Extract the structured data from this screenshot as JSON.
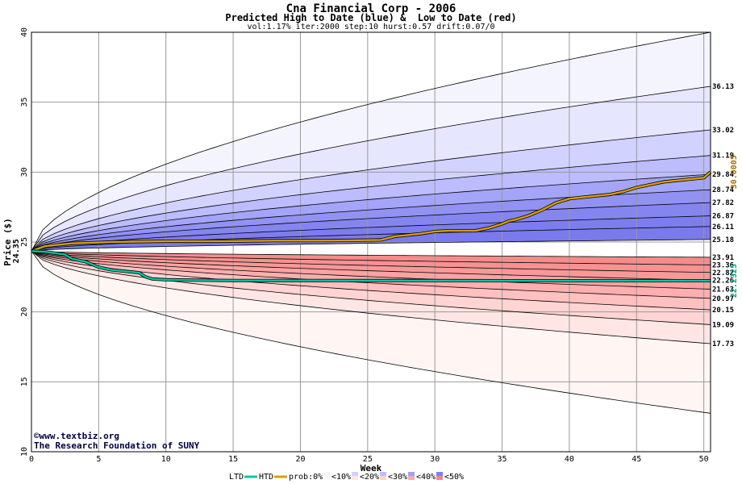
{
  "chart_data": {
    "type": "area",
    "title": "Cna Financial Corp - 2006",
    "subtitle": "Predicted High to Date (blue) &  Low to Date (red)",
    "params": "vol:1.17% iter:2000 step:10 hurst:0.57 drift:0.07/0",
    "xlabel": "Week",
    "ylabel": "Price ($)",
    "xlim": [
      0,
      50.5
    ],
    "ylim": [
      10,
      40
    ],
    "x_ticks": [
      0,
      5,
      10,
      15,
      20,
      25,
      30,
      35,
      40,
      45,
      50
    ],
    "y_ticks": [
      10,
      15,
      20,
      25,
      30,
      35,
      40
    ],
    "grid": true,
    "start_price": 24.35,
    "start_label": "24.35",
    "band_ends_high": [
      40.0,
      36.13,
      33.02,
      31.19,
      29.84,
      28.74,
      27.82,
      26.87,
      26.11,
      25.18
    ],
    "band_ends_low": [
      23.91,
      23.36,
      22.82,
      22.26,
      21.63,
      20.97,
      20.15,
      19.09,
      17.73,
      12.75
    ],
    "right_labels": [
      "36.13",
      "33.02",
      "31.19",
      "29.84",
      "28.74",
      "27.82",
      "26.87",
      "26.11",
      "25.18",
      "23.91",
      "23.36",
      "22.82",
      "22.26",
      "21.63",
      "20.97",
      "20.15",
      "19.09",
      "17.73"
    ],
    "series": [
      {
        "name": "HTD",
        "color": "#d8a000",
        "x": [
          0,
          1,
          3,
          6,
          10,
          14,
          18,
          22,
          26,
          27,
          28,
          29,
          30,
          31,
          32,
          33,
          34,
          35,
          35.5,
          36,
          37,
          38,
          39,
          40,
          41,
          42,
          43,
          44,
          45,
          46,
          47,
          48,
          49,
          50,
          50.5
        ],
        "values": [
          24.35,
          24.7,
          24.9,
          25.0,
          25.05,
          25.05,
          25.1,
          25.1,
          25.15,
          25.4,
          25.5,
          25.6,
          25.75,
          25.8,
          25.8,
          25.8,
          26.0,
          26.3,
          26.5,
          26.6,
          26.9,
          27.3,
          27.8,
          28.1,
          28.2,
          28.3,
          28.4,
          28.6,
          28.9,
          29.1,
          29.3,
          29.4,
          29.5,
          29.6,
          30.0
        ],
        "end_label": "30.0005"
      },
      {
        "name": "LTD",
        "color": "#00c8a0",
        "x": [
          0,
          1,
          2.5,
          3,
          4,
          4.5,
          5,
          6,
          7,
          8,
          8.5,
          9,
          10,
          12,
          15,
          20,
          25,
          30,
          35,
          40,
          45,
          50.5
        ],
        "values": [
          24.35,
          24.3,
          24.1,
          23.8,
          23.6,
          23.4,
          23.2,
          23.0,
          22.9,
          22.8,
          22.5,
          22.35,
          22.3,
          22.27,
          22.25,
          22.25,
          22.24,
          22.24,
          22.23,
          22.23,
          22.23,
          22.23
        ],
        "end_label": "22.2325"
      }
    ],
    "band_colors_high": [
      "#f4f4ff",
      "#e6e6ff",
      "#d2d2ff",
      "#bcbcff",
      "#a4a4f8",
      "#9292f2",
      "#8585f0",
      "#7d7dee",
      "#7a7aec"
    ],
    "band_colors_low": [
      "#fff6f4",
      "#ffe6e4",
      "#ffd4d2",
      "#ffc0c0",
      "#ffaeae",
      "#fba2a2",
      "#f99898",
      "#f59292",
      "#f58c8c"
    ],
    "legend": {
      "ltd": "LTD",
      "htd": "HTD",
      "prob": "prob:0%",
      "items": [
        {
          "label": "<10%",
          "color": "#f4f4ff",
          "color2": "#fff6f4"
        },
        {
          "label": "<20%",
          "color": "#d2d2ff",
          "color2": "#ffe6e4"
        },
        {
          "label": "<30%",
          "color": "#bcbcff",
          "color2": "#ffd0ce"
        },
        {
          "label": "<40%",
          "color": "#a0a0f8",
          "color2": "#ffaaaa"
        },
        {
          "label": "<50%",
          "color": "#8080f0",
          "color2": "#f08888"
        }
      ]
    }
  },
  "footer": {
    "copyright": "©www.textbiz.org",
    "org": "The Research Foundation of SUNY"
  }
}
